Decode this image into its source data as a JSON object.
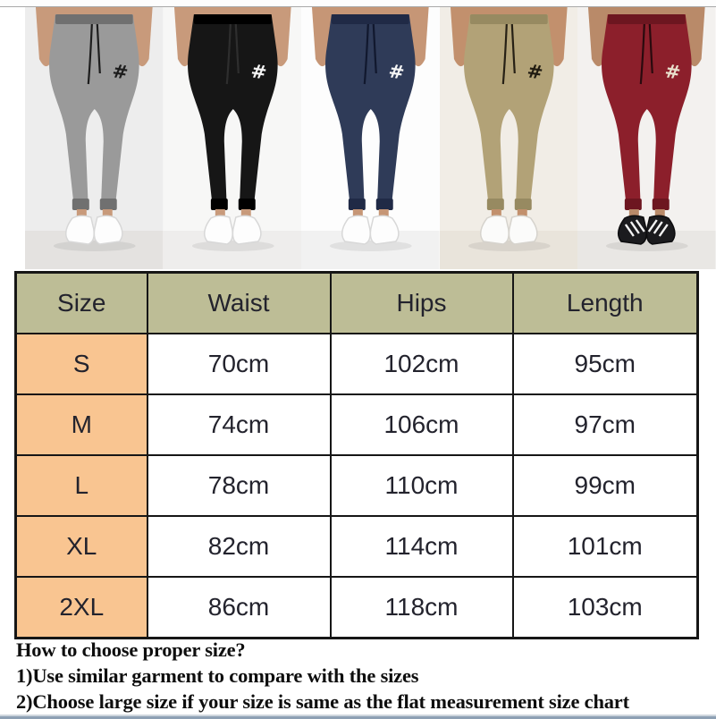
{
  "photos": {
    "logo_glyph": "#",
    "items": [
      {
        "id": "grey-joggers",
        "bg": "#ededed",
        "floor": "#e4e2e0",
        "pant": "#9a9a9a",
        "band": "#707070",
        "drawstring": "#1d1d1d",
        "logo_color": "#1c1c1c",
        "shoe_style": "white",
        "shoe": "#fdfdfd",
        "shoe_edge": "#d8d8d8",
        "skin": "#c89a7b"
      },
      {
        "id": "black-joggers",
        "bg": "#f7f7f6",
        "floor": "#eeedec",
        "pant": "#161616",
        "band": "#000000",
        "drawstring": "#2e2e2e",
        "logo_color": "#f5f5f5",
        "shoe_style": "white",
        "shoe": "#fdfdfd",
        "shoe_edge": "#d8d8d8",
        "skin": "#c89a7b"
      },
      {
        "id": "navy-joggers",
        "bg": "#fdfdfd",
        "floor": "#f1f1f1",
        "pant": "#2f3b58",
        "band": "#202a46",
        "drawstring": "#11182e",
        "logo_color": "#f5f5f5",
        "shoe_style": "white",
        "shoe": "#fdfdfd",
        "shoe_edge": "#d8d8d8",
        "skin": "#c69676"
      },
      {
        "id": "khaki-joggers",
        "bg": "#f1ede6",
        "floor": "#e9e4db",
        "pant": "#b2a277",
        "band": "#978a61",
        "drawstring": "#262015",
        "logo_color": "#1f1a10",
        "shoe_style": "white",
        "shoe": "#fbfbfa",
        "shoe_edge": "#d6d3cd",
        "skin": "#c2906d"
      },
      {
        "id": "burgundy-joggers",
        "bg": "#f3f1ef",
        "floor": "#e9e7e4",
        "pant": "#8c1f2b",
        "band": "#6d1620",
        "drawstring": "#2a0a0e",
        "logo_color": "#e9e0cd",
        "shoe_style": "striped",
        "shoe": "#1b1b1e",
        "shoe_edge": "#0c0c0e",
        "skin": "#b98a69"
      }
    ]
  },
  "size_chart": {
    "header_bg": "#bdbd96",
    "size_col_bg": "#f9c591",
    "cell_bg": "#ffffff",
    "border_color": "#161616",
    "columns": [
      "Size",
      "Waist",
      "Hips",
      "Length"
    ],
    "rows": [
      {
        "size": "S",
        "waist": "70cm",
        "hips": "102cm",
        "length": "95cm"
      },
      {
        "size": "M",
        "waist": "74cm",
        "hips": "106cm",
        "length": "97cm"
      },
      {
        "size": "L",
        "waist": "78cm",
        "hips": "110cm",
        "length": "99cm"
      },
      {
        "size": "XL",
        "waist": "82cm",
        "hips": "114cm",
        "length": "101cm"
      },
      {
        "size": "2XL",
        "waist": "86cm",
        "hips": "118cm",
        "length": "103cm"
      }
    ]
  },
  "notes": {
    "title": "How to choose proper size?",
    "items": [
      "1)Use similar garment to compare with the sizes",
      "2)Choose large size if your size is same as the flat measurement size chart"
    ]
  }
}
